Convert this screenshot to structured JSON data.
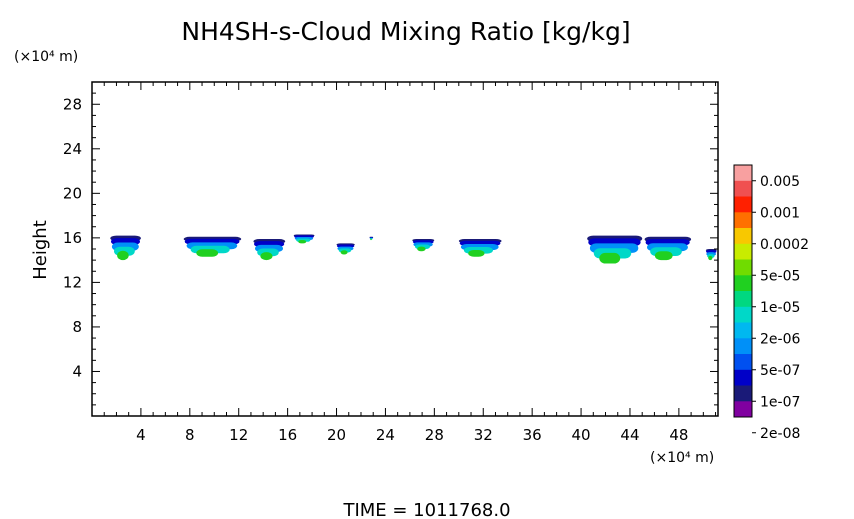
{
  "chart_data": {
    "type": "heatmap",
    "title": "NH4SH-s-Cloud Mixing Ratio [kg/kg]",
    "ylabel": "Height",
    "x_unit_label": "(×10⁴ m)",
    "y_unit_label": "(×10⁴ m)",
    "footer": "TIME =  1011768.0",
    "xlim": [
      0,
      51.2
    ],
    "ylim": [
      0,
      30
    ],
    "xticks": [
      4,
      8,
      12,
      16,
      20,
      24,
      28,
      32,
      36,
      40,
      44,
      48
    ],
    "yticks": [
      4,
      8,
      12,
      16,
      20,
      24,
      28
    ],
    "grid": false,
    "colorbar": {
      "labels": [
        "0.005",
        "0.001",
        "0.0002",
        "5e-05",
        "1e-05",
        "2e-06",
        "5e-07",
        "1e-07",
        "2e-08"
      ],
      "colors": [
        "#f8a0a0",
        "#f05050",
        "#ff2000",
        "#ff7000",
        "#f8c800",
        "#c8ec00",
        "#70dc00",
        "#20d020",
        "#00d880",
        "#00d8c8",
        "#00b8f0",
        "#0090f8",
        "#0050f0",
        "#0000c8",
        "#1a1a78",
        "#8000a0"
      ]
    },
    "clouds": [
      {
        "x": [
          1.5,
          4.0
        ],
        "y": [
          14.0,
          16.2
        ]
      },
      {
        "x": [
          7.5,
          12.2
        ],
        "y": [
          14.3,
          16.1
        ]
      },
      {
        "x": [
          13.2,
          15.8
        ],
        "y": [
          14.0,
          15.9
        ]
      },
      {
        "x": [
          16.5,
          18.2
        ],
        "y": [
          15.5,
          16.3
        ]
      },
      {
        "x": [
          20.0,
          21.5
        ],
        "y": [
          14.5,
          15.5
        ]
      },
      {
        "x": [
          22.7,
          23.0
        ],
        "y": [
          15.8,
          16.1
        ]
      },
      {
        "x": [
          26.2,
          28.0
        ],
        "y": [
          14.8,
          15.9
        ]
      },
      {
        "x": [
          30.0,
          33.5
        ],
        "y": [
          14.3,
          15.9
        ]
      },
      {
        "x": [
          40.5,
          45.0
        ],
        "y": [
          13.7,
          16.2
        ]
      },
      {
        "x": [
          45.2,
          49.0
        ],
        "y": [
          14.0,
          16.1
        ]
      },
      {
        "x": [
          50.2,
          51.1
        ],
        "y": [
          14.0,
          15.0
        ]
      }
    ]
  }
}
